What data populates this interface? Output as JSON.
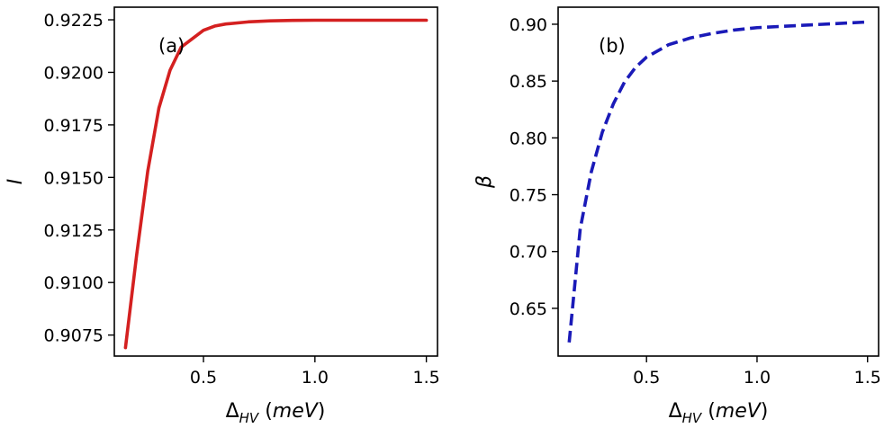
{
  "chart_data": [
    {
      "type": "line",
      "panel_label": "(a)",
      "xlabel": {
        "main": "Δ",
        "sub": "HV",
        "rest": " (",
        "unit": "meV",
        "close": ")"
      },
      "ylabel": "I",
      "xlim": [
        0.1,
        1.55
      ],
      "ylim": [
        0.9065,
        0.9231
      ],
      "xticks": [
        0.5,
        1.0,
        1.5
      ],
      "xtick_labels": [
        "0.5",
        "1.0",
        "1.5"
      ],
      "yticks": [
        0.9075,
        0.91,
        0.9125,
        0.915,
        0.9175,
        0.92,
        0.9225
      ],
      "ytick_labels": [
        "0.9075",
        "0.9100",
        "0.9125",
        "0.9150",
        "0.9175",
        "0.9200",
        "0.9225"
      ],
      "series": [
        {
          "name": "I",
          "color": "#d42020",
          "style": "solid",
          "x": [
            0.15,
            0.2,
            0.25,
            0.3,
            0.35,
            0.4,
            0.45,
            0.5,
            0.55,
            0.6,
            0.7,
            0.8,
            0.9,
            1.0,
            1.2,
            1.5
          ],
          "y": [
            0.9069,
            0.9113,
            0.9153,
            0.9183,
            0.9201,
            0.9212,
            0.9216,
            0.922,
            0.9222,
            0.9223,
            0.9224,
            0.92245,
            0.92247,
            0.92248,
            0.92248,
            0.92248
          ]
        }
      ]
    },
    {
      "type": "line",
      "panel_label": "(b)",
      "xlabel": {
        "main": "Δ",
        "sub": "HV",
        "rest": " (",
        "unit": "meV",
        "close": ")"
      },
      "ylabel": "β",
      "xlim": [
        0.1,
        1.55
      ],
      "ylim": [
        0.608,
        0.915
      ],
      "xticks": [
        0.5,
        1.0,
        1.5
      ],
      "xtick_labels": [
        "0.5",
        "1.0",
        "1.5"
      ],
      "yticks": [
        0.65,
        0.7,
        0.75,
        0.8,
        0.85,
        0.9
      ],
      "ytick_labels": [
        "0.65",
        "0.70",
        "0.75",
        "0.80",
        "0.85",
        "0.90"
      ],
      "series": [
        {
          "name": "β",
          "color": "#1a1ab8",
          "style": "dashed",
          "x": [
            0.15,
            0.2,
            0.25,
            0.3,
            0.35,
            0.4,
            0.45,
            0.5,
            0.6,
            0.7,
            0.8,
            0.9,
            1.0,
            1.2,
            1.4,
            1.5
          ],
          "y": [
            0.62,
            0.72,
            0.77,
            0.805,
            0.83,
            0.849,
            0.862,
            0.871,
            0.882,
            0.888,
            0.892,
            0.895,
            0.897,
            0.899,
            0.901,
            0.902
          ]
        }
      ]
    }
  ]
}
